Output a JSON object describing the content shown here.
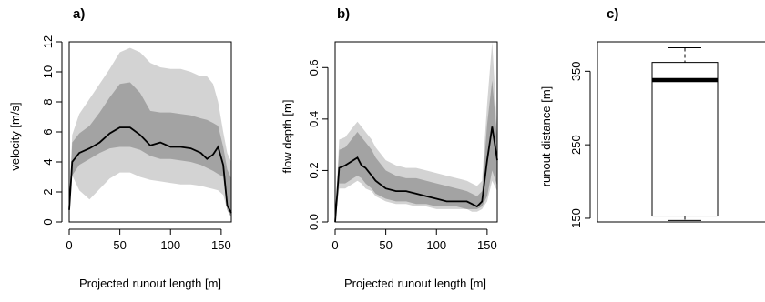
{
  "chart_data": [
    {
      "type": "line",
      "panel_label": "a)",
      "xlabel": "Projected runout length [m]",
      "ylabel": "velocity [m/s]",
      "xlim": [
        0,
        160
      ],
      "ylim": [
        0,
        12
      ],
      "xticks": [
        "0",
        "50",
        "100",
        "150"
      ],
      "yticks": [
        "0",
        "2",
        "4",
        "6",
        "8",
        "10",
        "12"
      ],
      "x": [
        0,
        3,
        10,
        20,
        30,
        40,
        50,
        60,
        70,
        80,
        90,
        100,
        110,
        120,
        130,
        136,
        142,
        147,
        152,
        156,
        160
      ],
      "series": [
        {
          "role": "outer_band",
          "lower": [
            1.0,
            3.1,
            2.1,
            1.5,
            2.2,
            2.9,
            3.3,
            3.3,
            3.0,
            2.8,
            2.7,
            2.6,
            2.5,
            2.5,
            2.4,
            2.3,
            2.2,
            2.1,
            1.8,
            0.8,
            0.3
          ],
          "upper": [
            1.0,
            5.8,
            7.2,
            8.2,
            9.2,
            10.2,
            11.3,
            11.6,
            11.3,
            10.6,
            10.3,
            10.2,
            10.2,
            10.0,
            9.7,
            9.7,
            9.2,
            8.0,
            6.0,
            4.6,
            4.0
          ]
        },
        {
          "role": "inner_band",
          "lower": [
            1.0,
            3.1,
            3.8,
            4.2,
            4.6,
            4.9,
            5.0,
            5.0,
            4.8,
            4.4,
            4.2,
            4.2,
            4.1,
            4.0,
            3.8,
            3.6,
            3.4,
            3.2,
            3.0,
            0.8,
            0.3
          ],
          "upper": [
            1.0,
            5.3,
            5.9,
            6.4,
            7.3,
            8.3,
            9.2,
            9.3,
            8.6,
            7.4,
            7.3,
            7.3,
            7.2,
            7.1,
            6.9,
            6.8,
            6.6,
            6.4,
            5.0,
            3.5,
            2.9
          ]
        },
        {
          "role": "median",
          "values": [
            0.8,
            4.0,
            4.6,
            4.9,
            5.3,
            5.9,
            6.3,
            6.3,
            5.8,
            5.1,
            5.3,
            5.0,
            5.0,
            4.9,
            4.6,
            4.2,
            4.5,
            5.0,
            3.8,
            1.1,
            0.6
          ]
        }
      ]
    },
    {
      "type": "line",
      "panel_label": "b)",
      "xlabel": "Projected runout length [m]",
      "ylabel": "flow depth [m]",
      "xlim": [
        0,
        160
      ],
      "ylim": [
        0,
        0.7
      ],
      "xticks": [
        "0",
        "50",
        "100",
        "150"
      ],
      "yticks": [
        "0.0",
        "0.2",
        "0.4",
        "0.6"
      ],
      "x": [
        0,
        4,
        10,
        18,
        22,
        26,
        30,
        36,
        40,
        50,
        60,
        70,
        80,
        90,
        100,
        110,
        120,
        130,
        135,
        140,
        145,
        150,
        155,
        160
      ],
      "series": [
        {
          "role": "outer_band",
          "lower": [
            0.0,
            0.13,
            0.13,
            0.15,
            0.16,
            0.15,
            0.13,
            0.12,
            0.1,
            0.08,
            0.07,
            0.07,
            0.06,
            0.06,
            0.05,
            0.05,
            0.05,
            0.05,
            0.04,
            0.04,
            0.05,
            0.08,
            0.16,
            0.12
          ],
          "upper": [
            0.0,
            0.32,
            0.33,
            0.37,
            0.39,
            0.37,
            0.35,
            0.32,
            0.29,
            0.24,
            0.22,
            0.21,
            0.21,
            0.2,
            0.19,
            0.18,
            0.17,
            0.16,
            0.15,
            0.14,
            0.16,
            0.46,
            0.7,
            0.35
          ]
        },
        {
          "role": "inner_band",
          "lower": [
            0.0,
            0.15,
            0.15,
            0.17,
            0.18,
            0.17,
            0.15,
            0.13,
            0.11,
            0.09,
            0.08,
            0.08,
            0.07,
            0.07,
            0.06,
            0.06,
            0.06,
            0.05,
            0.05,
            0.05,
            0.06,
            0.1,
            0.2,
            0.14
          ],
          "upper": [
            0.0,
            0.28,
            0.29,
            0.33,
            0.35,
            0.33,
            0.31,
            0.28,
            0.25,
            0.2,
            0.18,
            0.17,
            0.17,
            0.16,
            0.15,
            0.14,
            0.13,
            0.12,
            0.11,
            0.1,
            0.12,
            0.38,
            0.55,
            0.32
          ]
        },
        {
          "role": "median",
          "values": [
            0.0,
            0.21,
            0.22,
            0.24,
            0.25,
            0.22,
            0.21,
            0.18,
            0.16,
            0.13,
            0.12,
            0.12,
            0.11,
            0.1,
            0.09,
            0.08,
            0.08,
            0.08,
            0.07,
            0.06,
            0.08,
            0.24,
            0.37,
            0.24
          ]
        }
      ]
    },
    {
      "type": "box",
      "panel_label": "c)",
      "ylabel": "runout distance [m]",
      "ylim": [
        145,
        390
      ],
      "yticks": [
        "150",
        "250",
        "350"
      ],
      "box": {
        "whisker_low": 147,
        "q1": 153,
        "median": 338,
        "q3": 362,
        "whisker_high": 382
      }
    }
  ],
  "colors": {
    "outer_band": "#d3d3d3",
    "inner_band": "#a3a3a3",
    "median_line": "#000000",
    "axis": "#000000",
    "box_fill": "#ffffff"
  }
}
